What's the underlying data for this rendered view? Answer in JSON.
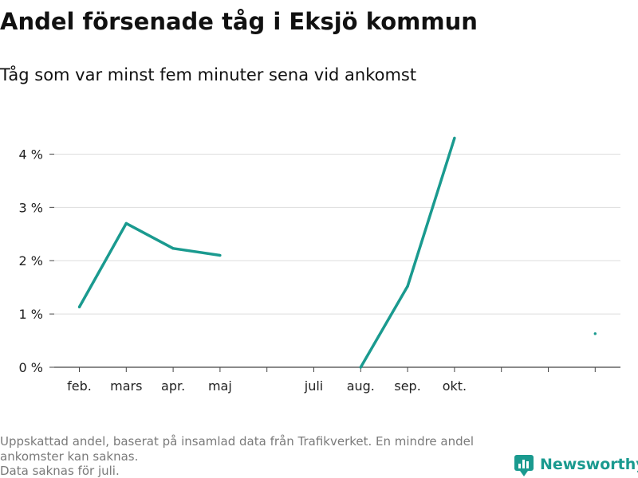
{
  "chart_data": {
    "type": "line",
    "title": "Andel försenade tåg i Eksjö kommun",
    "subtitle": "Tåg som var minst fem minuter sena vid ankomst",
    "xlabel": "",
    "ylabel": "",
    "categories": [
      "feb.",
      "mars",
      "apr.",
      "maj",
      "",
      "juli",
      "aug.",
      "sep.",
      "okt.",
      "",
      "",
      ""
    ],
    "series": [
      {
        "values": [
          1.13,
          2.7,
          2.23,
          2.1,
          null,
          null,
          0.0,
          1.52,
          4.3,
          null,
          null,
          0.63
        ],
        "color": "#1a9a8f"
      }
    ],
    "ylim": [
      0,
      4.5
    ],
    "yticks": [
      0,
      1,
      2,
      3,
      4
    ],
    "ytick_suffix": " %",
    "yticklabels": [
      "0 %",
      "1 %",
      "2 %",
      "3 %",
      "4 %"
    ],
    "grid": true
  },
  "footnote": {
    "lines": [
      "Uppskattad andel, baserat på insamlad data från Trafikverket. En mindre andel",
      "ankomster kan saknas.",
      "Data saknas för juli."
    ]
  },
  "brand": {
    "name": "Newsworthy",
    "color": "#1a9a8f",
    "icon": "newsworthy-logo-icon"
  }
}
